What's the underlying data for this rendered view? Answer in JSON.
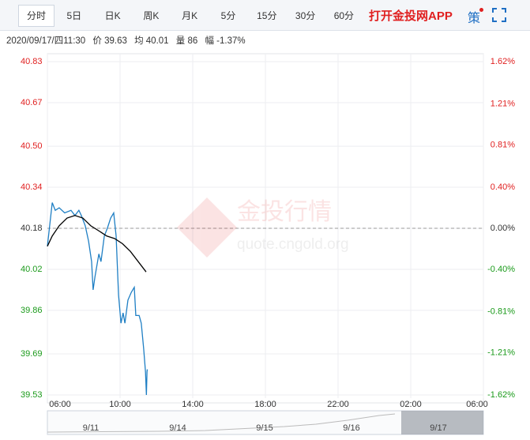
{
  "tabs": [
    "分时",
    "5日",
    "日K",
    "周K",
    "月K",
    "5分",
    "15分",
    "30分",
    "60分"
  ],
  "app_link": "打开金投网APP",
  "strategy": "策",
  "info": {
    "datetime": "2020/09/17/四11:30",
    "price": "价 39.63",
    "avg": "均 40.01",
    "volume": "量 86",
    "change": "幅 -1.37%"
  },
  "watermark": {
    "brand": "金投行情",
    "url": "quote.cngold.org"
  },
  "navigator_dates": [
    "9/11",
    "9/14",
    "9/15",
    "9/16",
    "9/17"
  ],
  "chart_data": {
    "type": "line",
    "series": [
      {
        "name": "价",
        "color": "#1f7fc4",
        "x": [
          0,
          16,
          26,
          39,
          57,
          78,
          91,
          104,
          112,
          125,
          136,
          146,
          151,
          157,
          170,
          177,
          188,
          198,
          209,
          219,
          227,
          235,
          243,
          250,
          256,
          266,
          277,
          287,
          292,
          303,
          310,
          318,
          324,
          327,
          329,
          330
        ],
        "values": [
          40.11,
          40.28,
          40.25,
          40.26,
          40.24,
          40.25,
          40.23,
          40.25,
          40.23,
          40.19,
          40.13,
          40.05,
          39.94,
          39.99,
          40.08,
          40.05,
          40.15,
          40.18,
          40.22,
          40.24,
          40.15,
          39.92,
          39.81,
          39.85,
          39.81,
          39.9,
          39.93,
          39.95,
          39.84,
          39.84,
          39.81,
          39.71,
          39.62,
          39.53,
          39.62,
          39.63
        ]
      },
      {
        "name": "均",
        "color": "#000000",
        "x": [
          0,
          16,
          39,
          65,
          91,
          117,
          143,
          170,
          196,
          222,
          248,
          274,
          300,
          326
        ],
        "values": [
          40.11,
          40.15,
          40.19,
          40.22,
          40.23,
          40.22,
          40.19,
          40.17,
          40.15,
          40.14,
          40.12,
          40.09,
          40.05,
          40.01
        ]
      }
    ],
    "prev_close": 40.18,
    "up_color": "#e02020",
    "down_color": "#1a9a1a",
    "xlim": [
      0,
      1440
    ],
    "xticks": [
      {
        "value": 0,
        "label": "06:00"
      },
      {
        "value": 240,
        "label": "10:00"
      },
      {
        "value": 480,
        "label": "14:00"
      },
      {
        "value": 720,
        "label": "18:00"
      },
      {
        "value": 960,
        "label": "22:00"
      },
      {
        "value": 1200,
        "label": "02:00"
      },
      {
        "value": 1440,
        "label": "06:00"
      }
    ],
    "ylim": [
      39.53,
      40.83
    ],
    "yticks": [
      39.53,
      39.69,
      39.86,
      40.02,
      40.18,
      40.34,
      {
        "value": 40.5,
        "label": "40.50"
      },
      40.67,
      40.83
    ],
    "y2lim": [
      -1.62,
      1.62
    ],
    "y2ticks": [
      {
        "value": -1.62,
        "label": "-1.62%"
      },
      {
        "value": -1.21,
        "label": "-1.21%"
      },
      {
        "value": -0.81,
        "label": "-0.81%"
      },
      {
        "value": -0.4,
        "label": "-0.40%"
      },
      {
        "value": 0,
        "label": "0.00%"
      },
      {
        "value": 0.4,
        "label": "0.40%"
      },
      {
        "value": 0.81,
        "label": "0.81%"
      },
      {
        "value": 1.21,
        "label": "1.21%"
      },
      {
        "value": 1.62,
        "label": "1.62%"
      }
    ],
    "grid": true
  }
}
